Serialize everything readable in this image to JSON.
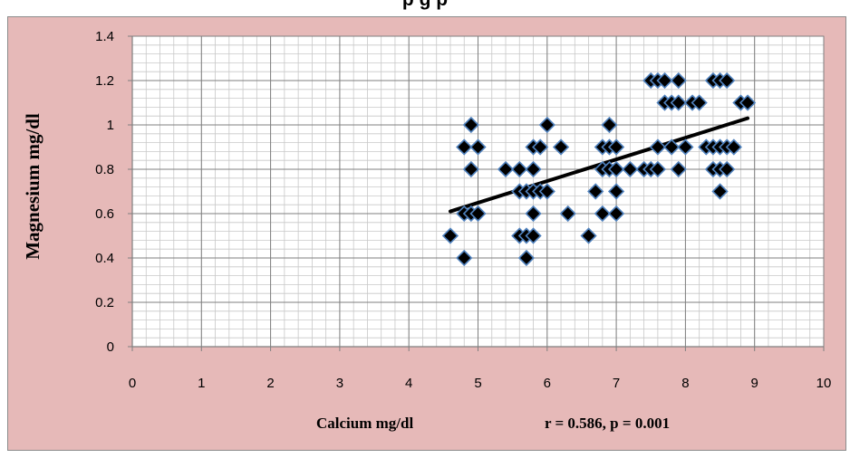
{
  "top_text": "p                                                              g                                                    p",
  "chart_data": {
    "type": "scatter",
    "xlabel": "Calcium mg/dl",
    "ylabel": "Magnesium mg/dl",
    "annotation": "r = 0.586, p = 0.001",
    "xlim": [
      0,
      10
    ],
    "ylim": [
      0,
      1.4
    ],
    "x_ticks": [
      "0",
      "1",
      "2",
      "3",
      "4",
      "5",
      "6",
      "7",
      "8",
      "9",
      "10"
    ],
    "y_ticks": [
      "0",
      "0.2",
      "0.4",
      "0.6",
      "0.8",
      "1",
      "1.2",
      "1.4"
    ],
    "grid": true,
    "colors": {
      "background": "#e6b9b8",
      "plot_area": "#ffffff",
      "marker": "#000000",
      "marker_edge": "#4f81bd",
      "trend": "#000000"
    },
    "points": [
      [
        4.6,
        0.5
      ],
      [
        4.8,
        0.4
      ],
      [
        4.8,
        0.6
      ],
      [
        4.8,
        0.9
      ],
      [
        4.9,
        1.0
      ],
      [
        4.9,
        0.8
      ],
      [
        4.9,
        0.6
      ],
      [
        5.0,
        0.9
      ],
      [
        5.0,
        0.6
      ],
      [
        5.4,
        0.8
      ],
      [
        5.6,
        0.8
      ],
      [
        5.6,
        0.7
      ],
      [
        5.6,
        0.5
      ],
      [
        5.7,
        0.7
      ],
      [
        5.7,
        0.5
      ],
      [
        5.7,
        0.4
      ],
      [
        5.8,
        0.9
      ],
      [
        5.8,
        0.8
      ],
      [
        5.8,
        0.6
      ],
      [
        5.8,
        0.5
      ],
      [
        5.8,
        0.7
      ],
      [
        5.9,
        0.9
      ],
      [
        5.9,
        0.7
      ],
      [
        6.0,
        1.0
      ],
      [
        6.0,
        0.7
      ],
      [
        6.2,
        0.9
      ],
      [
        6.3,
        0.6
      ],
      [
        6.6,
        0.5
      ],
      [
        6.7,
        0.7
      ],
      [
        6.8,
        0.9
      ],
      [
        6.8,
        0.8
      ],
      [
        6.8,
        0.6
      ],
      [
        6.9,
        1.0
      ],
      [
        6.9,
        0.9
      ],
      [
        6.9,
        0.8
      ],
      [
        7.0,
        0.9
      ],
      [
        7.0,
        0.8
      ],
      [
        7.0,
        0.7
      ],
      [
        7.0,
        0.6
      ],
      [
        7.2,
        0.8
      ],
      [
        7.4,
        0.8
      ],
      [
        7.5,
        1.2
      ],
      [
        7.5,
        0.8
      ],
      [
        7.6,
        1.2
      ],
      [
        7.6,
        0.9
      ],
      [
        7.6,
        0.8
      ],
      [
        7.7,
        1.2
      ],
      [
        7.7,
        1.1
      ],
      [
        7.8,
        1.1
      ],
      [
        7.8,
        0.9
      ],
      [
        7.9,
        1.2
      ],
      [
        7.9,
        1.1
      ],
      [
        7.9,
        0.8
      ],
      [
        8.0,
        0.9
      ],
      [
        8.1,
        1.1
      ],
      [
        8.2,
        1.1
      ],
      [
        8.3,
        0.9
      ],
      [
        8.4,
        1.2
      ],
      [
        8.4,
        0.9
      ],
      [
        8.4,
        0.8
      ],
      [
        8.5,
        1.2
      ],
      [
        8.5,
        0.9
      ],
      [
        8.5,
        0.8
      ],
      [
        8.5,
        0.7
      ],
      [
        8.6,
        1.2
      ],
      [
        8.6,
        0.9
      ],
      [
        8.6,
        0.8
      ],
      [
        8.7,
        0.9
      ],
      [
        8.8,
        1.1
      ],
      [
        8.9,
        1.1
      ]
    ],
    "trendline": {
      "x": [
        4.6,
        8.9
      ],
      "y": [
        0.61,
        1.03
      ]
    }
  }
}
